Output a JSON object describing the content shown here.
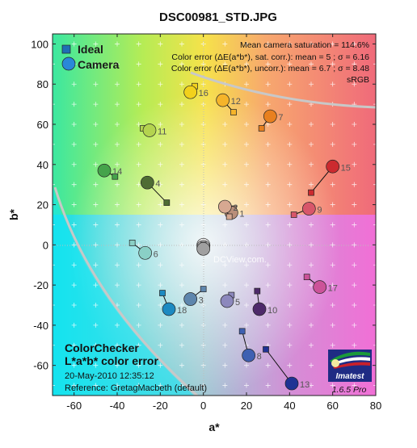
{
  "chart_data": {
    "type": "scatter",
    "title": "DSC00981_STD.JPG",
    "xlabel": "a*",
    "ylabel": "b*",
    "xlim": [
      -70,
      80
    ],
    "ylim": [
      -75,
      105
    ],
    "xticks": [
      -60,
      -40,
      -20,
      0,
      20,
      40,
      60,
      80
    ],
    "yticks": [
      -60,
      -40,
      -20,
      0,
      20,
      40,
      60,
      80,
      100
    ],
    "grid": true,
    "legend": {
      "position": "top-left",
      "ideal_label": "Ideal",
      "camera_label": "Camera"
    },
    "stats": [
      "Mean camera saturation = 114.6%",
      "Color error (ΔE(a*b*), sat. corr.):  mean = 5 ;  σ = 6.16",
      "Color error (ΔE(a*b*), uncorr.):  mean = 6.7 ;  σ = 8.48",
      "sRGB"
    ],
    "watermark": "DCView.com.",
    "info": [
      "ColorChecker",
      "L*a*b* color error",
      "20-May-2010 12:35:12",
      "Reference: GretagMacbeth (default)"
    ],
    "version": "1.6.5  Pro",
    "logo_text": "Imatest",
    "patches": [
      {
        "id": "1",
        "ideal": [
          14,
          18
        ],
        "camera": [
          13,
          16
        ],
        "color": "#b98e7a"
      },
      {
        "id": "2",
        "ideal": [
          12,
          14
        ],
        "camera": [
          10,
          19
        ],
        "color": "#d7a891"
      },
      {
        "id": "3",
        "ideal": [
          0,
          -22
        ],
        "camera": [
          -6,
          -27
        ],
        "color": "#5e86ad"
      },
      {
        "id": "4",
        "ideal": [
          -17,
          21
        ],
        "camera": [
          -26,
          31
        ],
        "color": "#4f6c34"
      },
      {
        "id": "5",
        "ideal": [
          13,
          -25
        ],
        "camera": [
          11,
          -28
        ],
        "color": "#8c88bd"
      },
      {
        "id": "6",
        "ideal": [
          -33,
          1
        ],
        "camera": [
          -27,
          -4
        ],
        "color": "#8ad0c6"
      },
      {
        "id": "7",
        "ideal": [
          27,
          58
        ],
        "camera": [
          31,
          64
        ],
        "color": "#e8801f"
      },
      {
        "id": "8",
        "ideal": [
          18,
          -43
        ],
        "camera": [
          21,
          -55
        ],
        "color": "#3f60b2"
      },
      {
        "id": "9",
        "ideal": [
          42,
          15
        ],
        "camera": [
          49,
          18
        ],
        "color": "#d8566a"
      },
      {
        "id": "10",
        "ideal": [
          25,
          -23
        ],
        "camera": [
          26,
          -32
        ],
        "color": "#4e2a6a"
      },
      {
        "id": "11",
        "ideal": [
          -28,
          58
        ],
        "camera": [
          -25,
          57
        ],
        "color": "#b4d34f"
      },
      {
        "id": "12",
        "ideal": [
          14,
          66
        ],
        "camera": [
          9,
          72
        ],
        "color": "#f5b42a"
      },
      {
        "id": "13",
        "ideal": [
          29,
          -52
        ],
        "camera": [
          41,
          -69
        ],
        "color": "#1f3294"
      },
      {
        "id": "14",
        "ideal": [
          -41,
          34
        ],
        "camera": [
          -46,
          37
        ],
        "color": "#45a34b"
      },
      {
        "id": "15",
        "ideal": [
          50,
          26
        ],
        "camera": [
          60,
          39
        ],
        "color": "#cc2a2f"
      },
      {
        "id": "16",
        "ideal": [
          -4,
          79
        ],
        "camera": [
          -6,
          76
        ],
        "color": "#f2d11c"
      },
      {
        "id": "17",
        "ideal": [
          48,
          -16
        ],
        "camera": [
          54,
          -21
        ],
        "color": "#cc5399"
      },
      {
        "id": "18",
        "ideal": [
          -19,
          -24
        ],
        "camera": [
          -16,
          -32
        ],
        "color": "#1d8ac1"
      },
      {
        "id": "",
        "ideal": [
          0,
          0
        ],
        "camera": [
          0,
          0
        ],
        "color": "#f3f3f3"
      },
      {
        "id": "",
        "ideal": [
          0,
          0
        ],
        "camera": [
          0,
          -1
        ],
        "color": "#c8c8c8"
      },
      {
        "id": "",
        "ideal": [
          0,
          0
        ],
        "camera": [
          0,
          -2
        ],
        "color": "#a0a0a0"
      }
    ]
  }
}
